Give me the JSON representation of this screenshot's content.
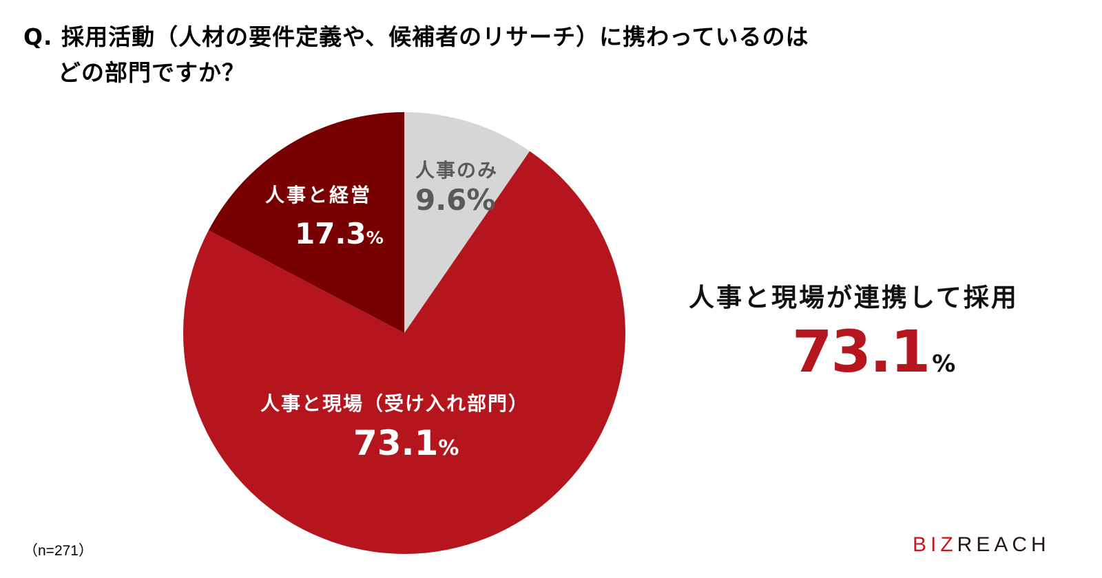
{
  "title": {
    "line1": "Q. 採用活動（人材の要件定義や、候補者のリサーチ）に携わっているのは",
    "line2": "どの部門ですか？"
  },
  "labels": {
    "hr_only": {
      "name": "人事のみ",
      "value": "9.6",
      "pct": "%"
    },
    "hr_mgmt": {
      "name": "人事と経営",
      "value": "17.3",
      "pct": "%"
    },
    "hr_field": {
      "name": "人事と現場（受け入れ部門）",
      "value": "73.1",
      "pct": "%"
    }
  },
  "callout": {
    "title": "人事と現場が連携して採用",
    "value": "73.1",
    "pct": "%"
  },
  "note": "（n=271）",
  "logo": {
    "red": "BIZ",
    "dark": "REACH"
  },
  "colors": {
    "hr_only": "#d6d6d6",
    "hr_field": "#b5161e",
    "hr_mgmt": "#780000",
    "accent": "#b5161e"
  },
  "chart_data": {
    "type": "pie",
    "title": "Q. 採用活動（人材の要件定義や、候補者のリサーチ）に携わっているのは どの部門ですか？",
    "categories": [
      "人事のみ",
      "人事と現場（受け入れ部門）",
      "人事と経営"
    ],
    "values": [
      9.6,
      73.1,
      17.3
    ],
    "unit": "%",
    "colors": [
      "#d6d6d6",
      "#b5161e",
      "#780000"
    ],
    "start_angle": "12 o'clock, clockwise",
    "n": 271,
    "annotation": "人事と現場が連携して採用 73.1%"
  }
}
